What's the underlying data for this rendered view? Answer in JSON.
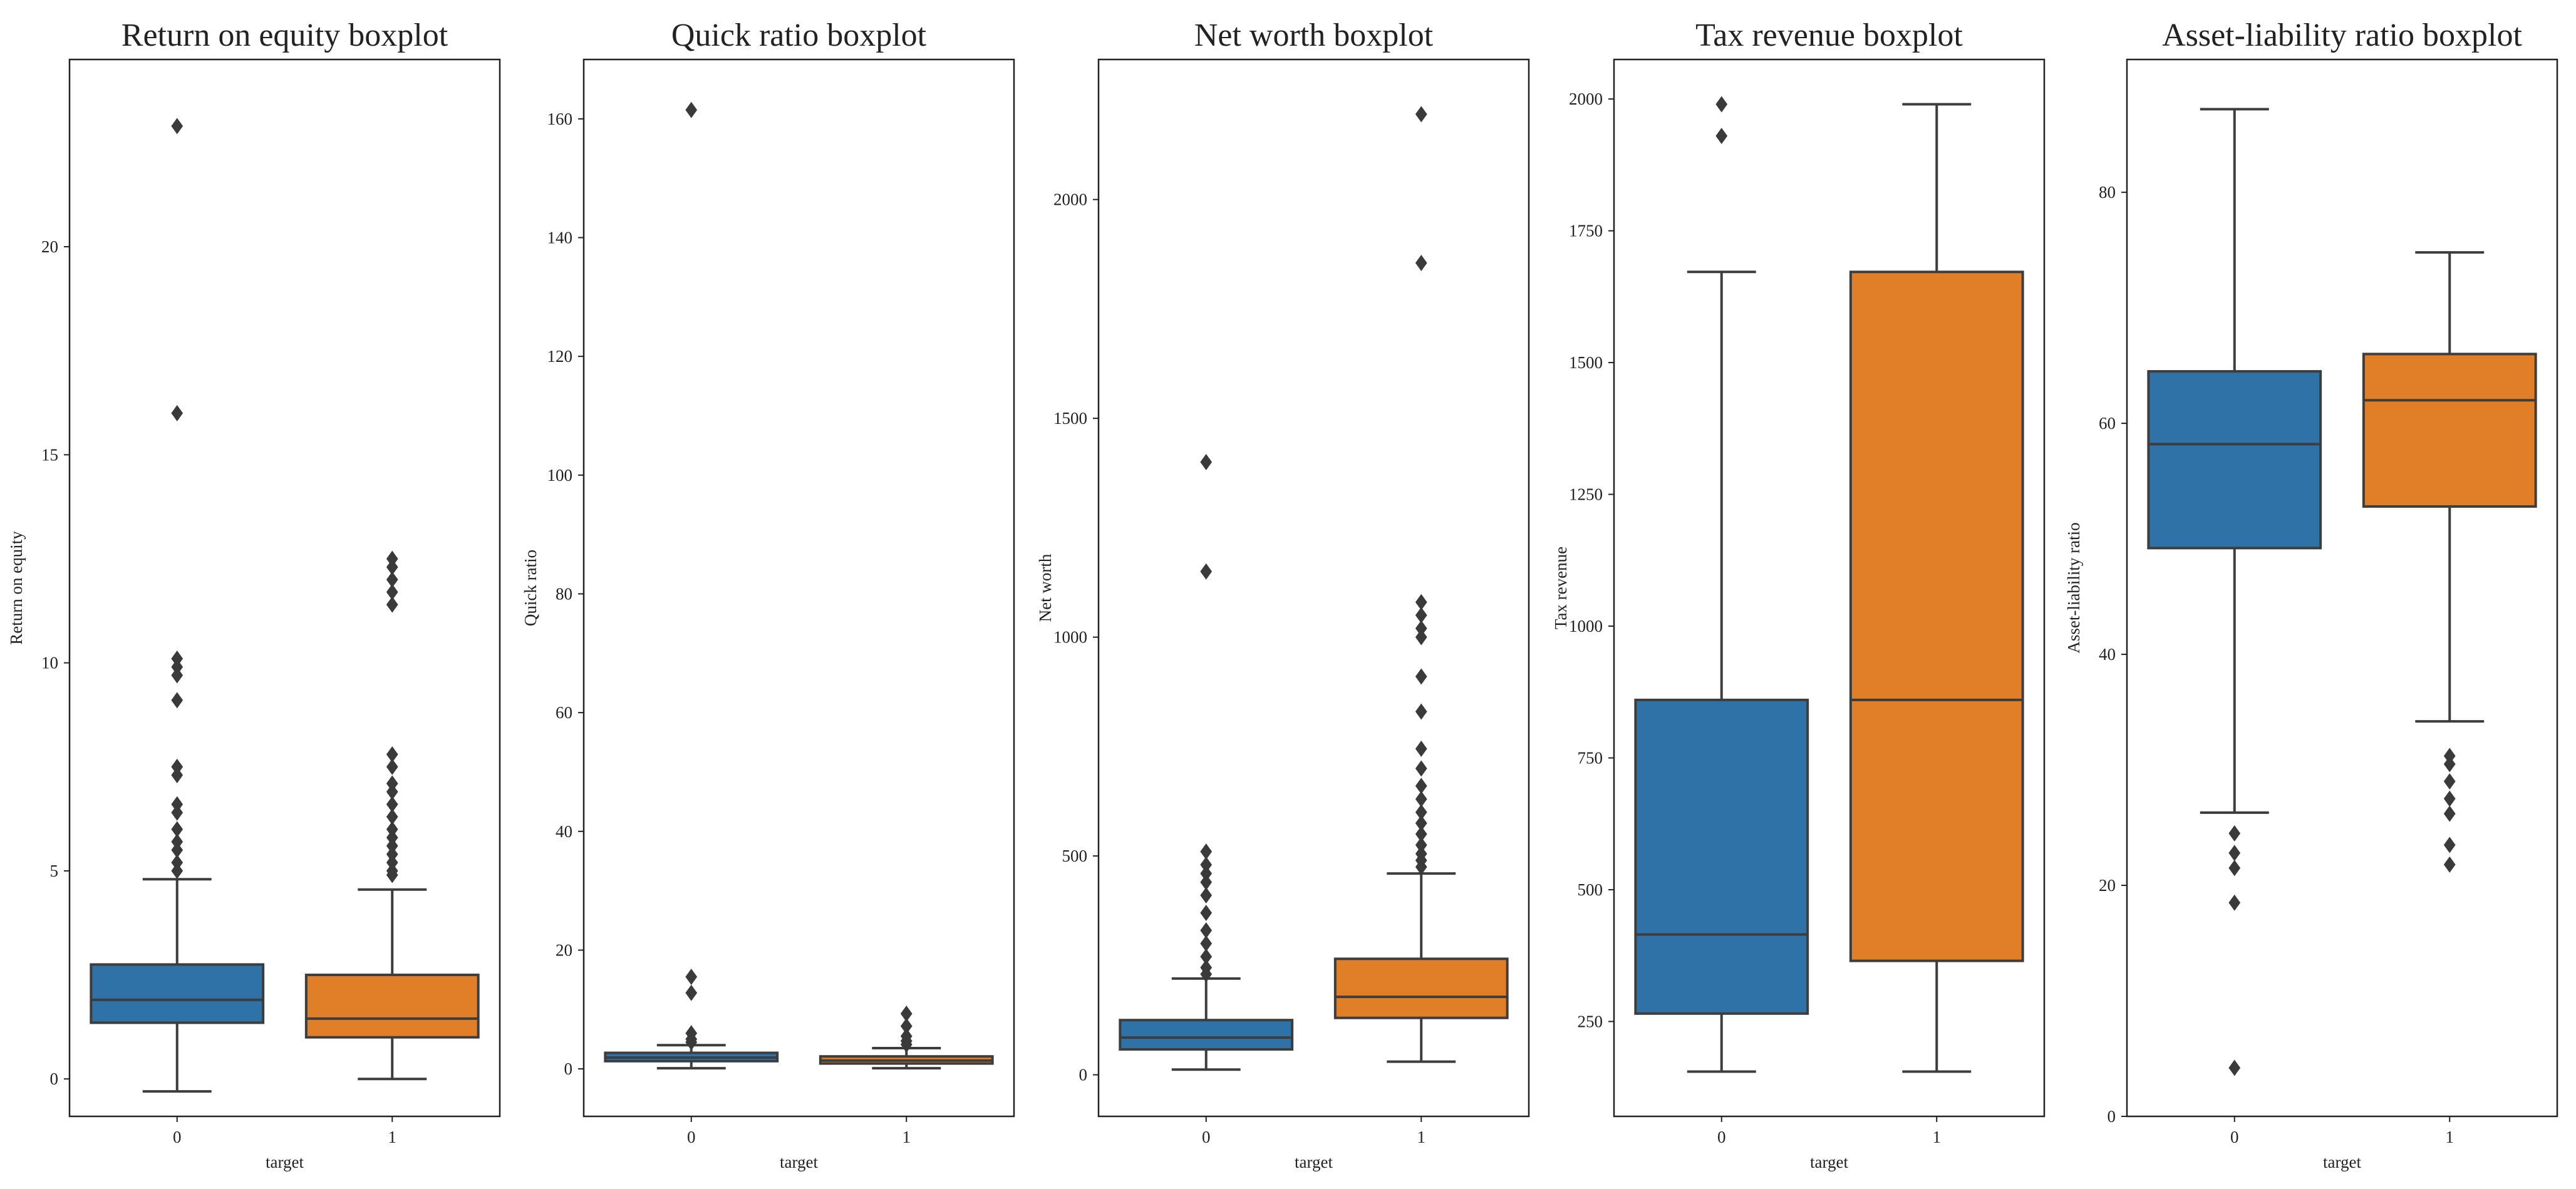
{
  "figure": {
    "background": "#ffffff",
    "box_colors": {
      "0": "#2e72a8",
      "1": "#e17f28"
    },
    "line_color": "#3d3d3d",
    "outlier_color": "#3a3a3a"
  },
  "chart_data": [
    {
      "type": "boxplot",
      "title": "Return on equity boxplot",
      "xlabel": "target",
      "ylabel": "Return on equity",
      "categories": [
        "0",
        "1"
      ],
      "ylim": [
        -0.9,
        24.5
      ],
      "yticks": [
        0,
        5,
        10,
        15,
        20
      ],
      "boxes": [
        {
          "category": "0",
          "whisker_low": -0.3,
          "q1": 1.35,
          "median": 1.9,
          "q3": 2.75,
          "whisker_high": 4.8,
          "outliers": [
            22.9,
            16.0,
            10.1,
            9.9,
            9.7,
            9.1,
            7.5,
            7.3,
            6.6,
            6.4,
            6.0,
            5.7,
            5.5,
            5.2,
            5.0
          ]
        },
        {
          "category": "1",
          "whisker_low": 0.0,
          "q1": 1.0,
          "median": 1.45,
          "q3": 2.5,
          "whisker_high": 4.55,
          "outliers": [
            12.5,
            12.3,
            12.0,
            11.7,
            11.4,
            7.8,
            7.5,
            7.1,
            6.9,
            6.6,
            6.3,
            6.0,
            5.8,
            5.6,
            5.4,
            5.2,
            5.0,
            4.9
          ]
        }
      ]
    },
    {
      "type": "boxplot",
      "title": "Quick ratio boxplot",
      "xlabel": "target",
      "ylabel": "Quick ratio",
      "categories": [
        "0",
        "1"
      ],
      "ylim": [
        -8,
        170
      ],
      "yticks": [
        0,
        20,
        40,
        60,
        80,
        100,
        120,
        140,
        160
      ],
      "boxes": [
        {
          "category": "0",
          "whisker_low": 0.1,
          "q1": 1.3,
          "median": 1.9,
          "q3": 2.7,
          "whisker_high": 4.0,
          "outliers": [
            161.5,
            15.5,
            12.8,
            6.0,
            5.0,
            4.5
          ]
        },
        {
          "category": "1",
          "whisker_low": 0.1,
          "q1": 0.9,
          "median": 1.4,
          "q3": 2.1,
          "whisker_high": 3.5,
          "outliers": [
            9.3,
            7.2,
            5.5,
            4.7,
            4.1
          ]
        }
      ]
    },
    {
      "type": "boxplot",
      "title": "Net worth boxplot",
      "xlabel": "target",
      "ylabel": "Net worth",
      "categories": [
        "0",
        "1"
      ],
      "ylim": [
        -95,
        2320
      ],
      "yticks": [
        0,
        500,
        1000,
        1500,
        2000
      ],
      "boxes": [
        {
          "category": "0",
          "whisker_low": 12,
          "q1": 58,
          "median": 85,
          "q3": 125,
          "whisker_high": 220,
          "outliers": [
            1400,
            1150,
            510,
            480,
            460,
            440,
            410,
            370,
            330,
            300,
            270,
            245,
            230
          ]
        },
        {
          "category": "1",
          "whisker_low": 30,
          "q1": 130,
          "median": 178,
          "q3": 265,
          "whisker_high": 460,
          "outliers": [
            2195,
            1855,
            1080,
            1050,
            1020,
            1000,
            910,
            830,
            745,
            700,
            660,
            630,
            600,
            575,
            550,
            525,
            505,
            490,
            475
          ]
        }
      ]
    },
    {
      "type": "boxplot",
      "title": "Tax revenue boxplot",
      "xlabel": "target",
      "ylabel": "Tax revenue",
      "categories": [
        "0",
        "1"
      ],
      "ylim": [
        70,
        2075
      ],
      "yticks": [
        250,
        500,
        750,
        1000,
        1250,
        1500,
        1750,
        2000
      ],
      "boxes": [
        {
          "category": "0",
          "whisker_low": 155,
          "q1": 265,
          "median": 415,
          "q3": 860,
          "whisker_high": 1672,
          "outliers": [
            1990,
            1930
          ]
        },
        {
          "category": "1",
          "whisker_low": 155,
          "q1": 365,
          "median": 860,
          "q3": 1672,
          "whisker_high": 1990,
          "outliers": []
        }
      ]
    },
    {
      "type": "boxplot",
      "title": "Asset-liability ratio boxplot",
      "xlabel": "target",
      "ylabel": "Asset-liability ratio",
      "categories": [
        "0",
        "1"
      ],
      "ylim": [
        0,
        91.5
      ],
      "yticks": [
        0,
        20,
        40,
        60,
        80
      ],
      "boxes": [
        {
          "category": "0",
          "whisker_low": 26.3,
          "q1": 49.2,
          "median": 58.2,
          "q3": 64.5,
          "whisker_high": 87.2,
          "outliers": [
            24.5,
            22.8,
            21.5,
            18.5,
            4.2
          ]
        },
        {
          "category": "1",
          "whisker_low": 34.2,
          "q1": 52.8,
          "median": 62.0,
          "q3": 66.0,
          "whisker_high": 74.8,
          "outliers": [
            31.2,
            30.5,
            29.0,
            27.5,
            26.2,
            23.5,
            21.8
          ]
        }
      ]
    }
  ]
}
